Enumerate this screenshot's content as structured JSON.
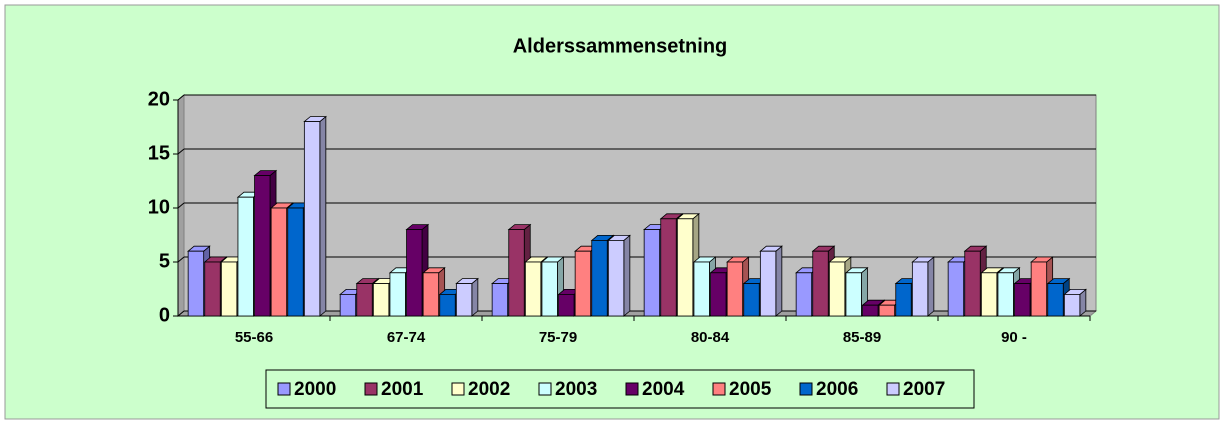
{
  "chart_data": {
    "type": "bar",
    "title": "Alderssammensetning",
    "categories": [
      "55-66",
      "67-74",
      "75-79",
      "80-84",
      "85-89",
      "90 -"
    ],
    "series": [
      {
        "name": "2000",
        "color": "#9999ff",
        "values": [
          6,
          2,
          3,
          8,
          4,
          5
        ]
      },
      {
        "name": "2001",
        "color": "#993366",
        "values": [
          5,
          3,
          8,
          9,
          6,
          6
        ]
      },
      {
        "name": "2002",
        "color": "#ffffcc",
        "values": [
          5,
          3,
          5,
          9,
          5,
          4
        ]
      },
      {
        "name": "2003",
        "color": "#ccffff",
        "values": [
          11,
          4,
          5,
          5,
          4,
          4
        ]
      },
      {
        "name": "2004",
        "color": "#660066",
        "values": [
          13,
          8,
          2,
          4,
          1,
          3
        ]
      },
      {
        "name": "2005",
        "color": "#ff8080",
        "values": [
          10,
          4,
          6,
          5,
          1,
          5
        ]
      },
      {
        "name": "2006",
        "color": "#0066cc",
        "values": [
          10,
          2,
          7,
          3,
          3,
          3
        ]
      },
      {
        "name": "2007",
        "color": "#ccccff",
        "values": [
          18,
          3,
          7,
          6,
          5,
          2
        ]
      }
    ],
    "ylim": [
      0,
      20
    ],
    "yticks": [
      0,
      5,
      10,
      15,
      20
    ],
    "grid": true,
    "legend": "bottom"
  }
}
